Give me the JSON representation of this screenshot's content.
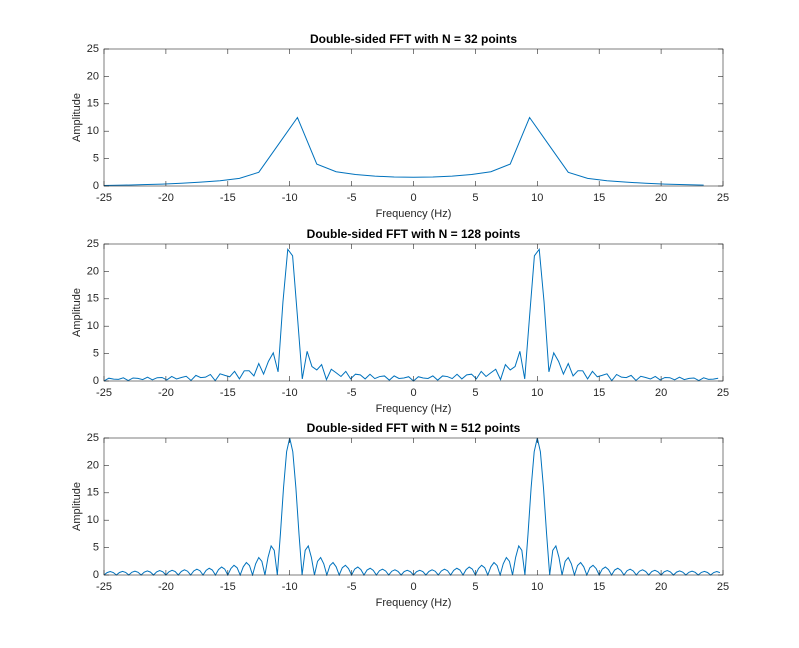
{
  "chart_data": [
    {
      "type": "line",
      "title": "Double-sided FFT with N = 32 points",
      "xlabel": "Frequency (Hz)",
      "ylabel": "Amplitude",
      "x": [
        -25,
        -23.438,
        -21.875,
        -20.313,
        -18.75,
        -17.188,
        -15.625,
        -14.063,
        -12.5,
        -10.938,
        -9.375,
        -7.813,
        -6.25,
        -4.688,
        -3.125,
        -1.563,
        0,
        1.563,
        3.125,
        4.688,
        6.25,
        7.813,
        9.375,
        10.938,
        12.5,
        14.063,
        15.625,
        17.188,
        18.75,
        20.313,
        21.875,
        23.438
      ],
      "values": [
        0.1,
        0.15,
        0.25,
        0.35,
        0.5,
        0.7,
        0.95,
        1.4,
        2.5,
        7.5,
        12.5,
        4,
        2.6,
        2.1,
        1.8,
        1.65,
        1.6,
        1.65,
        1.8,
        2.1,
        2.6,
        4,
        12.5,
        7.5,
        2.5,
        1.4,
        0.95,
        0.7,
        0.5,
        0.35,
        0.25,
        0.15
      ],
      "color": "#0072bd",
      "xlim": [
        -25,
        25
      ],
      "ylim": [
        0,
        25
      ],
      "xticks": [
        -25,
        -20,
        -15,
        -10,
        -5,
        0,
        5,
        10,
        15,
        20,
        25
      ],
      "yticks": [
        0,
        5,
        10,
        15,
        20,
        25
      ]
    },
    {
      "type": "line",
      "title": "Double-sided FFT with N = 128 points",
      "xlabel": "Frequency (Hz)",
      "ylabel": "Amplitude",
      "x": [
        -25,
        -24.609,
        -24.219,
        -23.828,
        -23.438,
        -23.047,
        -22.656,
        -22.266,
        -21.875,
        -21.484,
        -21.094,
        -20.703,
        -20.313,
        -19.922,
        -19.531,
        -19.141,
        -18.75,
        -18.359,
        -17.969,
        -17.578,
        -17.188,
        -16.797,
        -16.406,
        -16.016,
        -15.625,
        -15.234,
        -14.844,
        -14.453,
        -14.063,
        -13.672,
        -13.281,
        -12.891,
        -12.5,
        -12.109,
        -11.719,
        -11.328,
        -10.938,
        -10.547,
        -10.156,
        -9.766,
        -9.375,
        -8.984,
        -8.594,
        -8.203,
        -7.813,
        -7.422,
        -7.031,
        -6.641,
        -6.25,
        -5.859,
        -5.469,
        -5.078,
        -4.688,
        -4.297,
        -3.906,
        -3.516,
        -3.125,
        -2.734,
        -2.344,
        -1.953,
        -1.563,
        -1.172,
        -0.781,
        -0.391,
        0,
        0.391,
        0.781,
        1.172,
        1.563,
        1.953,
        2.344,
        2.734,
        3.125,
        3.516,
        3.906,
        4.297,
        4.688,
        5.078,
        5.469,
        5.859,
        6.25,
        6.641,
        7.031,
        7.422,
        7.813,
        8.203,
        8.594,
        8.984,
        9.375,
        9.766,
        10.156,
        10.547,
        10.938,
        11.328,
        11.719,
        12.109,
        12.5,
        12.891,
        13.281,
        13.672,
        14.063,
        14.453,
        14.844,
        15.234,
        15.625,
        16.016,
        16.406,
        16.797,
        17.188,
        17.578,
        17.969,
        18.359,
        18.75,
        19.141,
        19.531,
        19.922,
        20.313,
        20.703,
        21.094,
        21.484,
        21.875,
        22.266,
        22.656,
        23.047,
        23.438,
        23.828,
        24.219,
        24.609
      ],
      "values": [
        0,
        0.51,
        0.35,
        0.3,
        0.58,
        0.09,
        0.55,
        0.48,
        0.26,
        0.69,
        0.21,
        0.6,
        0.64,
        0.19,
        0.83,
        0.37,
        0.64,
        0.86,
        0.1,
        1.02,
        0.62,
        0.7,
        1.19,
        0.06,
        1.31,
        1.02,
        0.77,
        1.77,
        0.38,
        1.86,
        1.88,
        0.93,
        3.18,
        1.27,
        3.58,
        5.14,
        1.66,
        14.39,
        24.03,
        22.85,
        11.77,
        0.38,
        5.42,
        2.64,
        2.02,
        2.99,
        0.26,
        2.14,
        1.5,
        0.82,
        1.75,
        0.39,
        1.24,
        1.12,
        0.38,
        1.23,
        0.44,
        0.81,
        0.92,
        0.15,
        0.93,
        0.46,
        0.55,
        0.78,
        0,
        0.78,
        0.55,
        0.46,
        0.93,
        0.15,
        0.92,
        0.81,
        0.44,
        1.23,
        0.38,
        1.12,
        1.24,
        0.39,
        1.75,
        0.82,
        1.5,
        2.14,
        0.26,
        2.99,
        2.02,
        2.64,
        5.42,
        0.38,
        11.77,
        22.85,
        24.03,
        14.39,
        1.66,
        5.14,
        3.58,
        1.27,
        3.18,
        0.93,
        1.88,
        1.86,
        0.38,
        1.77,
        0.77,
        1.02,
        1.31,
        0.06,
        1.19,
        0.7,
        0.62,
        1.02,
        0.1,
        0.86,
        0.64,
        0.37,
        0.83,
        0.19,
        0.64,
        0.6,
        0.21,
        0.69,
        0.26,
        0.48,
        0.55,
        0.09,
        0.58,
        0.3,
        0.35,
        0.51
      ],
      "color": "#0072bd",
      "xlim": [
        -25,
        25
      ],
      "ylim": [
        0,
        25
      ],
      "xticks": [
        -25,
        -20,
        -15,
        -10,
        -5,
        0,
        5,
        10,
        15,
        20,
        25
      ],
      "yticks": [
        0,
        5,
        10,
        15,
        20,
        25
      ]
    },
    {
      "type": "line",
      "title": "Double-sided FFT with N = 512 points",
      "xlabel": "Frequency (Hz)",
      "ylabel": "Amplitude",
      "x": [
        -25,
        -24.75,
        -24.5,
        -24.25,
        -24,
        -23.75,
        -23.5,
        -23.25,
        -23,
        -22.75,
        -22.5,
        -22.25,
        -22,
        -21.75,
        -21.5,
        -21.25,
        -21,
        -20.75,
        -20.5,
        -20.25,
        -20,
        -19.75,
        -19.5,
        -19.25,
        -19,
        -18.75,
        -18.5,
        -18.25,
        -18,
        -17.75,
        -17.5,
        -17.25,
        -17,
        -16.75,
        -16.5,
        -16.25,
        -16,
        -15.75,
        -15.5,
        -15.25,
        -15,
        -14.75,
        -14.5,
        -14.25,
        -14,
        -13.75,
        -13.5,
        -13.25,
        -13,
        -12.75,
        -12.5,
        -12.25,
        -12,
        -11.75,
        -11.5,
        -11.25,
        -11,
        -10.75,
        -10.5,
        -10.25,
        -10,
        -9.75,
        -9.5,
        -9.25,
        -9,
        -8.75,
        -8.5,
        -8.25,
        -8,
        -7.75,
        -7.5,
        -7.25,
        -7,
        -6.75,
        -6.5,
        -6.25,
        -6,
        -5.75,
        -5.5,
        -5.25,
        -5,
        -4.75,
        -4.5,
        -4.25,
        -4,
        -3.75,
        -3.5,
        -3.25,
        -3,
        -2.75,
        -2.5,
        -2.25,
        -2,
        -1.75,
        -1.5,
        -1.25,
        -1,
        -0.75,
        -0.5,
        -0.25,
        0,
        0.25,
        0.5,
        0.75,
        1,
        1.25,
        1.5,
        1.75,
        2,
        2.25,
        2.5,
        2.75,
        3,
        3.25,
        3.5,
        3.75,
        4,
        4.25,
        4.5,
        4.75,
        5,
        5.25,
        5.5,
        5.75,
        6,
        6.25,
        6.5,
        6.75,
        7,
        7.25,
        7.5,
        7.75,
        8,
        8.25,
        8.5,
        8.75,
        9,
        9.25,
        9.5,
        9.75,
        10,
        10.25,
        10.5,
        10.75,
        11,
        11.25,
        11.5,
        11.75,
        12,
        12.25,
        12.5,
        12.75,
        13,
        13.25,
        13.5,
        13.75,
        14,
        14.25,
        14.5,
        14.75,
        15,
        15.25,
        15.5,
        15.75,
        16,
        16.25,
        16.5,
        16.75,
        17,
        17.25,
        17.5,
        17.75,
        18,
        18.25,
        18.5,
        18.75,
        19,
        19.25,
        19.5,
        19.75,
        20,
        20.25,
        20.5,
        20.75,
        21,
        21.25,
        21.5,
        21.75,
        22,
        22.25,
        22.5,
        22.75,
        23,
        23.25,
        23.5,
        23.75,
        24,
        24.25,
        24.5,
        24.75
      ],
      "values": [
        0,
        0.44,
        0.63,
        0.45,
        0,
        0.46,
        0.66,
        0.47,
        0,
        0.49,
        0.7,
        0.5,
        0,
        0.52,
        0.75,
        0.53,
        0,
        0.56,
        0.81,
        0.58,
        0,
        0.59,
        0.86,
        0.62,
        0,
        0.65,
        0.95,
        0.69,
        0,
        0.73,
        1.07,
        0.78,
        0,
        0.84,
        1.23,
        0.91,
        0,
        0.98,
        1.45,
        1.08,
        0,
        1.19,
        1.77,
        1.33,
        0,
        1.5,
        2.27,
        1.73,
        0,
        2.05,
        3.18,
        2.5,
        0,
        3.22,
        5.31,
        4.5,
        0,
        7.5,
        15.9,
        22.5,
        25,
        22.5,
        15.9,
        7.5,
        0,
        4.5,
        5.31,
        3.22,
        0,
        2.5,
        3.18,
        2.05,
        0,
        1.73,
        2.27,
        1.5,
        0,
        1.33,
        1.77,
        1.19,
        0,
        1.08,
        1.45,
        0.98,
        0,
        0.91,
        1.23,
        0.84,
        0,
        0.78,
        1.07,
        0.73,
        0,
        0.69,
        0.95,
        0.65,
        0,
        0.62,
        0.86,
        0.6,
        0,
        0.6,
        0.86,
        0.62,
        0,
        0.65,
        0.95,
        0.69,
        0,
        0.73,
        1.07,
        0.78,
        0,
        0.84,
        1.23,
        0.91,
        0,
        0.98,
        1.45,
        1.08,
        0,
        1.19,
        1.77,
        1.33,
        0,
        1.5,
        2.27,
        1.73,
        0,
        2.05,
        3.18,
        2.5,
        0,
        3.22,
        5.31,
        4.5,
        0,
        7.5,
        15.9,
        22.5,
        25,
        22.5,
        15.9,
        7.5,
        0,
        4.5,
        5.31,
        3.22,
        0,
        2.5,
        3.18,
        2.05,
        0,
        1.73,
        2.27,
        1.5,
        0,
        1.33,
        1.77,
        1.19,
        0,
        1.08,
        1.45,
        0.98,
        0,
        0.91,
        1.23,
        0.84,
        0,
        0.78,
        1.07,
        0.73,
        0,
        0.69,
        0.95,
        0.65,
        0,
        0.62,
        0.86,
        0.59,
        0,
        0.58,
        0.81,
        0.56,
        0,
        0.53,
        0.75,
        0.52,
        0,
        0.5,
        0.7,
        0.49,
        0,
        0.47,
        0.66,
        0.46,
        0,
        0.45,
        0.63,
        0.44
      ],
      "color": "#0072bd",
      "xlim": [
        -25,
        25
      ],
      "ylim": [
        0,
        25
      ],
      "xticks": [
        -25,
        -20,
        -15,
        -10,
        -5,
        0,
        5,
        10,
        15,
        20,
        25
      ],
      "yticks": [
        0,
        5,
        10,
        15,
        20,
        25
      ]
    }
  ]
}
